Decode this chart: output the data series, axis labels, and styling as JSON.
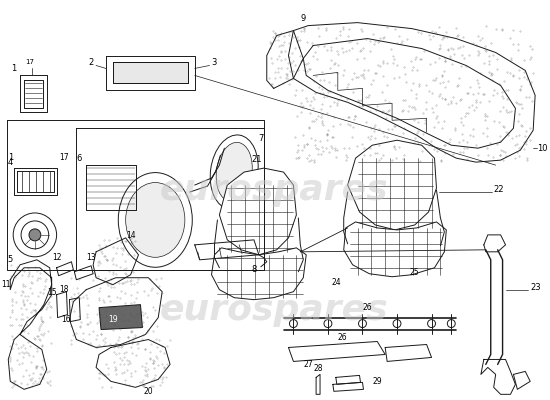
{
  "bg_color": "#ffffff",
  "line_color": "#1a1a1a",
  "watermark_text": "eurospares",
  "watermark_color": "#c8c8c8",
  "figsize": [
    5.5,
    4.0
  ],
  "dpi": 100
}
